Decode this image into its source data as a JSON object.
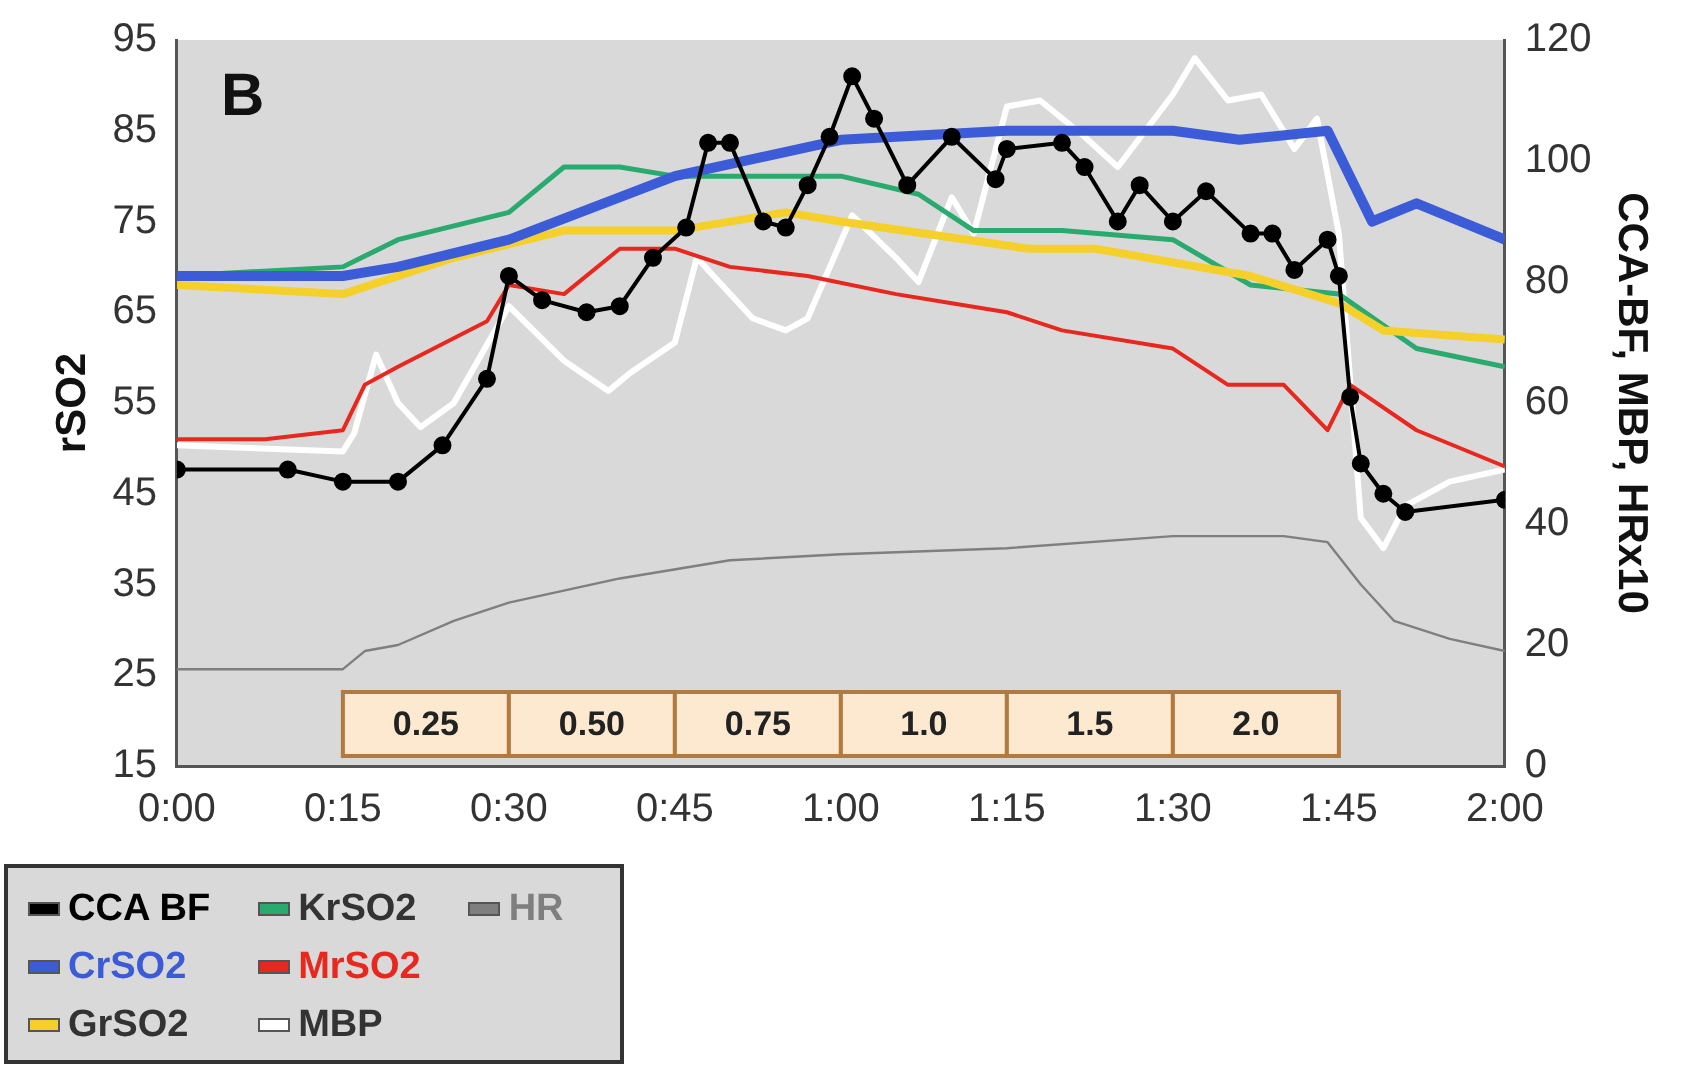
{
  "chart_data": {
    "type": "line",
    "ylabel": "rSO2",
    "y2label": "CCA-BF, MBP, HRx10",
    "annotations": [
      "B"
    ],
    "xlim": [
      0,
      2
    ],
    "xticks": [
      {
        "value": 0,
        "label": "0:00"
      },
      {
        "value": 0.25,
        "label": "0:15"
      },
      {
        "value": 0.5,
        "label": "0:30"
      },
      {
        "value": 0.75,
        "label": "0:45"
      },
      {
        "value": 1,
        "label": "1:00"
      },
      {
        "value": 1.25,
        "label": "1:15"
      },
      {
        "value": 1.5,
        "label": "1:30"
      },
      {
        "value": 1.75,
        "label": "1:45"
      },
      {
        "value": 2,
        "label": "2:00"
      }
    ],
    "ylim": [
      15,
      95
    ],
    "yticks": [
      15,
      25,
      35,
      45,
      55,
      65,
      75,
      85,
      95
    ],
    "y2lim": [
      0,
      120
    ],
    "y2ticks": [
      0,
      20,
      40,
      60,
      80,
      100,
      120
    ],
    "grid": false,
    "legend": "bottom left",
    "line_style": "solid",
    "marker": "none",
    "bands": [
      {
        "axis": "x",
        "from": 0.25,
        "to": 0.5,
        "label": "0.25",
        "color": "#fde9d0"
      },
      {
        "axis": "x",
        "from": 0.5,
        "to": 0.75,
        "label": "0.50",
        "color": "#fde9d0"
      },
      {
        "axis": "x",
        "from": 0.75,
        "to": 1,
        "label": "0.75",
        "color": "#fde9d0"
      },
      {
        "axis": "x",
        "from": 1,
        "to": 1.25,
        "label": "1.0",
        "color": "#fde9d0"
      },
      {
        "axis": "x",
        "from": 1.25,
        "to": 1.5,
        "label": "1.5",
        "color": "#fde9d0"
      },
      {
        "axis": "x",
        "from": 1.5,
        "to": 1.75,
        "label": "2.0",
        "color": "#fde9d0"
      }
    ],
    "series": [
      {
        "name": "CCA BF",
        "color": "#000000",
        "axis": "y2",
        "marker": "circle",
        "x": [
          0,
          0.167,
          0.25,
          0.333,
          0.4,
          0.467,
          0.5,
          0.55,
          0.617,
          0.667,
          0.717,
          0.767,
          0.8,
          0.833,
          0.883,
          0.917,
          0.95,
          0.983,
          1.017,
          1.05,
          1.1,
          1.167,
          1.233,
          1.25,
          1.333,
          1.367,
          1.417,
          1.45,
          1.5,
          1.55,
          1.617,
          1.65,
          1.683,
          1.733,
          1.75,
          1.767,
          1.783,
          1.817,
          1.85,
          2
        ],
        "values": [
          49,
          49,
          47,
          47,
          53,
          64,
          81,
          77,
          75,
          76,
          84,
          89,
          103,
          103,
          90,
          89,
          96,
          104,
          114,
          107,
          96,
          104,
          97,
          102,
          103,
          99,
          90,
          96,
          90,
          95,
          88,
          88,
          82,
          87,
          81,
          61,
          50,
          45,
          42,
          44
        ]
      },
      {
        "name": "CrSO2",
        "color": "#3c5bd6",
        "x": [
          0,
          0.25,
          0.333,
          0.5,
          0.75,
          1,
          1.25,
          1.5,
          1.6,
          1.733,
          1.8,
          1.867,
          2
        ],
        "values": [
          69,
          69,
          70,
          73,
          80,
          84,
          85,
          85,
          84,
          85,
          75,
          77,
          73
        ]
      },
      {
        "name": "GrSO2",
        "color": "#f5d02a",
        "x": [
          0,
          0.25,
          0.417,
          0.583,
          0.75,
          0.917,
          1,
          1.283,
          1.383,
          1.617,
          1.75,
          1.817,
          2
        ],
        "values": [
          68,
          67,
          71,
          74,
          74,
          76,
          75,
          72,
          72,
          69,
          66,
          63,
          62
        ]
      },
      {
        "name": "KrSO2",
        "color": "#2aaa6e",
        "x": [
          0,
          0.25,
          0.333,
          0.5,
          0.583,
          0.667,
          0.75,
          1,
          1.117,
          1.2,
          1.333,
          1.5,
          1.617,
          1.75,
          1.867,
          2
        ],
        "values": [
          69,
          70,
          73,
          76,
          81,
          81,
          80,
          80,
          78,
          74,
          74,
          73,
          68,
          67,
          61,
          59
        ]
      },
      {
        "name": "MrSO2",
        "color": "#e8281e",
        "x": [
          0,
          0.133,
          0.25,
          0.283,
          0.333,
          0.467,
          0.5,
          0.583,
          0.667,
          0.75,
          0.833,
          0.95,
          1.083,
          1.167,
          1.25,
          1.333,
          1.5,
          1.583,
          1.667,
          1.733,
          1.767,
          1.867,
          2
        ],
        "values": [
          51,
          51,
          52,
          57,
          59,
          64,
          68,
          67,
          72,
          72,
          70,
          69,
          67,
          66,
          65,
          63,
          61,
          57,
          57,
          52,
          57,
          52,
          48
        ]
      },
      {
        "name": "MBP",
        "color": "#ffffff",
        "axis": "y2",
        "x": [
          0,
          0.25,
          0.267,
          0.3,
          0.333,
          0.367,
          0.417,
          0.5,
          0.583,
          0.65,
          0.683,
          0.75,
          0.783,
          0.867,
          0.917,
          0.95,
          1.017,
          1.083,
          1.117,
          1.167,
          1.2,
          1.25,
          1.3,
          1.367,
          1.417,
          1.5,
          1.533,
          1.583,
          1.633,
          1.683,
          1.717,
          1.75,
          1.783,
          1.817,
          1.85,
          1.917,
          2
        ],
        "values": [
          53,
          52,
          55,
          68,
          60,
          56,
          60,
          76,
          67,
          62,
          65,
          70,
          84,
          74,
          72,
          74,
          91,
          84,
          80,
          94,
          88,
          109,
          110,
          104,
          99,
          111,
          117,
          110,
          111,
          102,
          107,
          88,
          41,
          36,
          43,
          47,
          49
        ]
      },
      {
        "name": "HR",
        "color": "#7f7f7f",
        "axis": "y2",
        "x": [
          0,
          0.25,
          0.283,
          0.333,
          0.417,
          0.5,
          0.667,
          0.833,
          1,
          1.25,
          1.5,
          1.667,
          1.733,
          1.783,
          1.833,
          1.917,
          2
        ],
        "values": [
          16,
          16,
          19,
          20,
          24,
          27,
          31,
          34,
          35,
          36,
          38,
          38,
          37,
          30,
          24,
          21,
          19
        ]
      }
    ]
  }
}
